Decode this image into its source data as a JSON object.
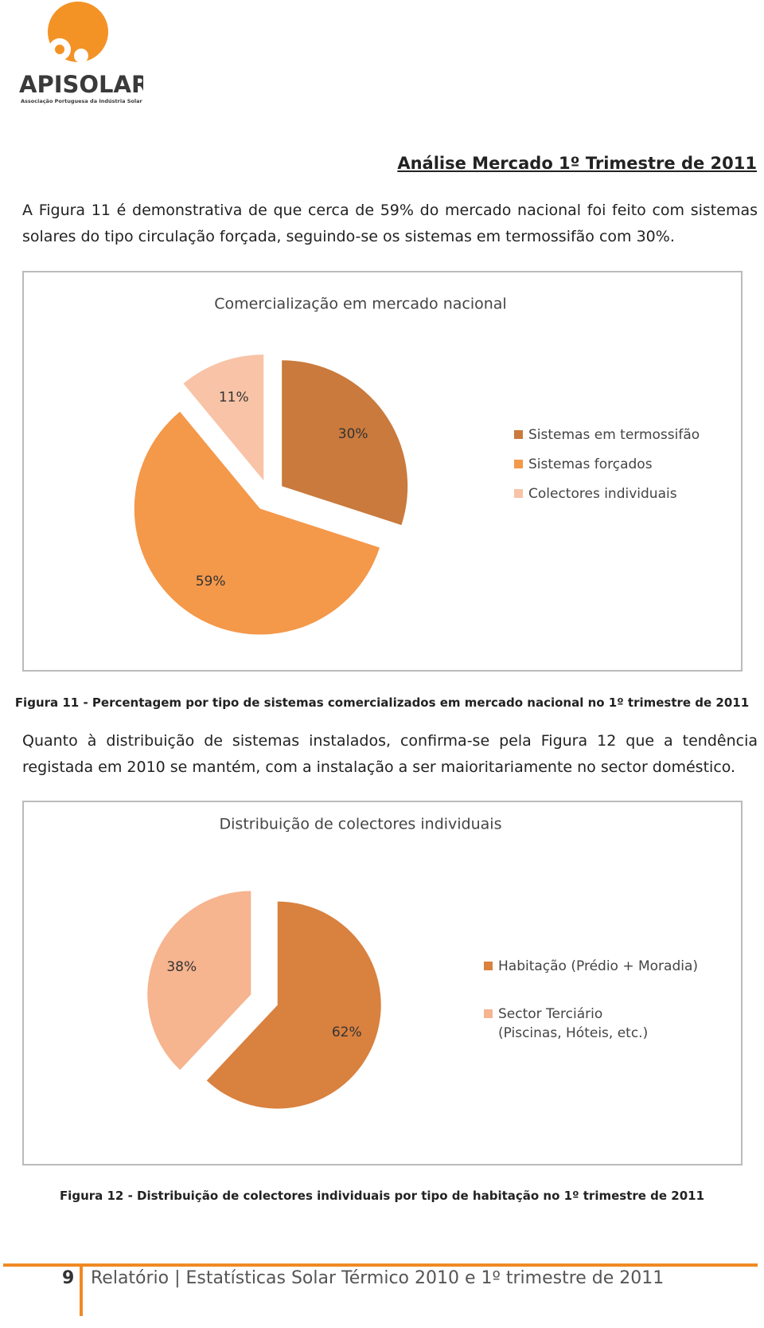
{
  "header": {
    "logo": "APISOLAR",
    "logo_subtitle": "Associação Portuguesa da Indústria Solar"
  },
  "section_title": "Análise Mercado 1º Trimestre de 2011",
  "paragraphs": [
    "A Figura 11 é demonstrativa de que cerca de 59% do mercado nacional foi feito com sistemas solares do tipo circulação forçada, seguindo-se os sistemas em termossifão com 30%.",
    "Quanto à distribuição de sistemas instalados, confirma-se pela Figura 12 que a tendência registada em 2010 se mantém, com a instalação a ser maioritariamente no sector doméstico."
  ],
  "captions": [
    "Figura 11 - Percentagem por tipo de sistemas comercializados em mercado nacional no 1º trimestre de 2011",
    "Figura 12 - Distribuição de colectores individuais por tipo de habitação no 1º trimestre de 2011"
  ],
  "chart_data": [
    {
      "type": "pie",
      "title": "Comercialização em mercado nacional",
      "categories": [
        "Sistemas em termossifão",
        "Sistemas forçados",
        "Colectores individuais"
      ],
      "values": [
        30,
        59,
        11
      ],
      "value_labels": [
        "30%",
        "59%",
        "11%"
      ],
      "colors": [
        "#c97a3c",
        "#f4984a",
        "#f8c3a6"
      ],
      "legend": "right"
    },
    {
      "type": "pie",
      "title": "Distribuição de colectores individuais",
      "categories": [
        "Habitação (Prédio + Moradia)",
        "Sector Terciário (Piscinas, Hóteis, etc.)"
      ],
      "values": [
        62,
        38
      ],
      "value_labels": [
        "62%",
        "38%"
      ],
      "colors": [
        "#d9813f",
        "#f6b48f"
      ],
      "legend": "right"
    }
  ],
  "footer": {
    "page_number": 9,
    "text": "Relatório | Estatísticas Solar Térmico 2010 e 1º trimestre de 2011"
  }
}
